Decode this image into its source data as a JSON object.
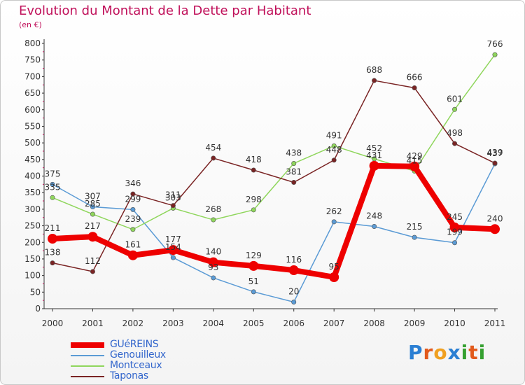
{
  "title": "Evolution du Montant de la Dette par Habitant",
  "unit_label": "(en €)",
  "logo": {
    "text": "Proxiti",
    "letters": [
      "P",
      "r",
      "o",
      "x",
      "i",
      "t",
      "i"
    ],
    "colors": [
      "#2b7fd3",
      "#e25a1c",
      "#f0a020",
      "#2b7fd3",
      "#35a030",
      "#e25a1c",
      "#35a030"
    ]
  },
  "chart_data": {
    "type": "line",
    "title": "Evolution du Montant de la Dette par Habitant",
    "ylabel": "(en €)",
    "xlabel": "",
    "x": [
      "2000",
      "2001",
      "2002",
      "2003",
      "2004",
      "2005",
      "2006",
      "2007",
      "2008",
      "2009",
      "2010",
      "2011"
    ],
    "ylim": [
      0,
      800
    ],
    "yticks": [
      0,
      50,
      100,
      150,
      200,
      250,
      300,
      350,
      400,
      450,
      500,
      550,
      600,
      650,
      700,
      750,
      800
    ],
    "grid": false,
    "legend_position": "bottom-left",
    "series": [
      {
        "name": "GUéREINS",
        "color": "#ee0000",
        "values": [
          211,
          217,
          161,
          177,
          140,
          129,
          116,
          95,
          431,
          429,
          245,
          240
        ],
        "labels": [
          "211",
          "217",
          "161",
          "177",
          "140",
          "129",
          "116",
          "95",
          "431",
          "429",
          "245",
          "240"
        ]
      },
      {
        "name": "Genouilleux",
        "color": "#5b9bd5",
        "values": [
          375,
          307,
          299,
          154,
          93,
          51,
          20,
          262,
          248,
          215,
          199,
          437
        ],
        "labels": [
          "375",
          "307",
          "299",
          "154",
          "93",
          "51",
          "20",
          "262",
          "248",
          "215",
          "199",
          "437"
        ]
      },
      {
        "name": "Montceaux",
        "color": "#8fd65c",
        "values": [
          335,
          285,
          239,
          303,
          268,
          298,
          438,
          491,
          452,
          415,
          601,
          766
        ],
        "labels": [
          "335",
          "285",
          "239",
          "303",
          "268",
          "298",
          "438",
          "491",
          "452",
          "415",
          "601",
          "766"
        ]
      },
      {
        "name": "Taponas",
        "color": "#7a2424",
        "values": [
          138,
          112,
          346,
          311,
          454,
          418,
          381,
          448,
          688,
          666,
          498,
          439
        ],
        "labels": [
          "138",
          "112",
          "346",
          "311",
          "454",
          "418",
          "381",
          "448",
          "688",
          "666",
          "498",
          "439"
        ]
      }
    ]
  }
}
